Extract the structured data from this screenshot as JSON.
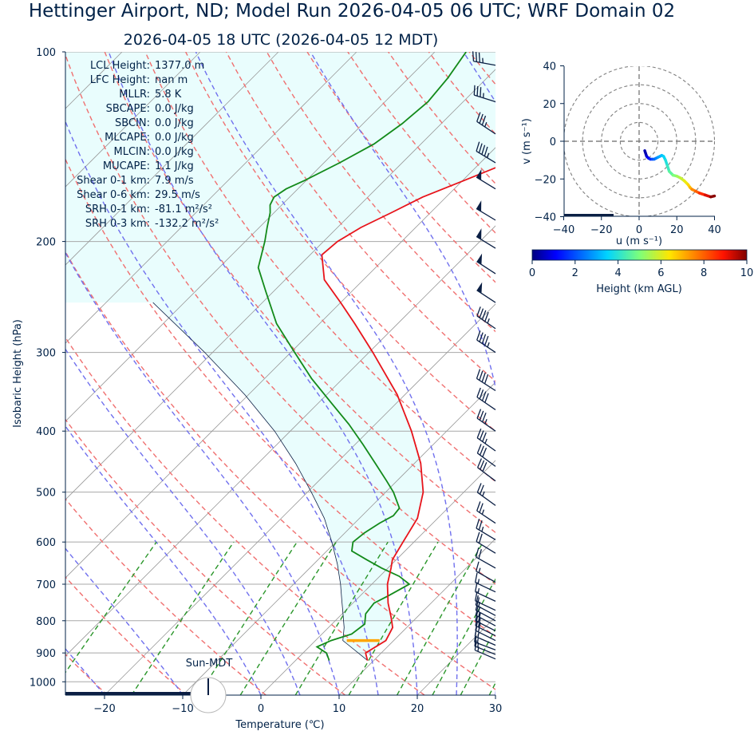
{
  "header": {
    "title": "Hettinger Airport, ND; Model Run 2026-04-05 06 UTC; WRF Domain 02",
    "subtitle": "2026-04-05 18 UTC  (2026-04-05 12 MDT)"
  },
  "skewt": {
    "xlabel": "Temperature (℃)",
    "ylabel": "Isobaric Height (hPa)",
    "sun_label": "Sun-MDT",
    "stats": [
      {
        "label": "LCL Height:",
        "value": "1377.0 m"
      },
      {
        "label": "LFC Height:",
        "value": "nan m"
      },
      {
        "label": "MLLR:",
        "value": "5.8 K"
      },
      {
        "label": "SBCAPE:",
        "value": "0.0 J/kg"
      },
      {
        "label": "SBCIN:",
        "value": "0.0 J/kg"
      },
      {
        "label": "MLCAPE:",
        "value": "0.0 J/kg"
      },
      {
        "label": "MLCIN:",
        "value": "0.0 J/kg"
      },
      {
        "label": "MUCAPE:",
        "value": "1.1 J/kg"
      },
      {
        "label": "Shear 0-1 km:",
        "value": "7.9 m/s"
      },
      {
        "label": "Shear 0-6 km:",
        "value": "29.5 m/s"
      },
      {
        "label": "SRH 0-1 km:",
        "value": "-81.1 m²/s²"
      },
      {
        "label": "SRH 0-3 km:",
        "value": "-132.2 m²/s²"
      }
    ]
  },
  "hodograph": {
    "xlabel": "u (m s⁻¹)",
    "ylabel": "v (m s⁻¹)",
    "colorbar_label": "Height (km AGL)"
  },
  "colors": {
    "temperature": "#e8141b",
    "dewpoint": "#138a1a",
    "parcel": "#0b1f44",
    "cape_fill": "#e9fdfd",
    "dry_adiabat": "#f07070",
    "moist_adiabat": "#7070ee",
    "mixing_ratio": "#2a962a",
    "isotherm": "#9a9a9a",
    "lcl_marker": "#ffa500",
    "text": "#002147"
  },
  "chart_data": [
    {
      "type": "line",
      "name": "skew-t",
      "xlim": [
        -25,
        30
      ],
      "ylim": [
        1050,
        100
      ],
      "y_scale": "log",
      "x_ticks": [
        -20,
        -10,
        0,
        10,
        20,
        30
      ],
      "y_ticks": [
        100,
        200,
        300,
        400,
        500,
        600,
        700,
        800,
        900,
        1000
      ],
      "grid": true,
      "series": [
        {
          "key": "temperature",
          "p": [
            925,
            900,
            860,
            820,
            790,
            750,
            700,
            660,
            640,
            600,
            550,
            500,
            450,
            400,
            350,
            300,
            270,
            250,
            230,
            210,
            200,
            190,
            180,
            170,
            160,
            150,
            140,
            130,
            120,
            110,
            100
          ],
          "t": [
            9.2,
            8.0,
            9.0,
            8.2,
            6.7,
            4.5,
            2.0,
            0.4,
            -0.5,
            -1.4,
            -2.6,
            -5.2,
            -9.2,
            -14.5,
            -21.0,
            -29.5,
            -35.5,
            -40.0,
            -45.0,
            -48.5,
            -48.2,
            -47.0,
            -45.0,
            -43.0,
            -39.8,
            -36.5,
            -35.5,
            -36.5,
            -39.5,
            -44.0,
            -48.0
          ]
        },
        {
          "key": "dewpoint",
          "p": [
            925,
            900,
            880,
            860,
            840,
            810,
            780,
            750,
            730,
            700,
            680,
            660,
            640,
            620,
            600,
            580,
            560,
            545,
            530,
            500,
            480,
            450,
            420,
            390,
            360,
            330,
            300,
            270,
            240,
            220,
            200,
            190,
            180,
            175,
            170,
            165,
            160,
            150,
            140,
            130,
            120,
            110,
            100
          ],
          "t": [
            4.3,
            3.0,
            1.0,
            2.0,
            3.8,
            4.2,
            3.0,
            2.7,
            3.6,
            4.8,
            2.5,
            -0.8,
            -3.8,
            -6.8,
            -7.8,
            -7.5,
            -6.8,
            -6.0,
            -6.2,
            -9.0,
            -11.3,
            -15.0,
            -19.0,
            -23.4,
            -28.5,
            -34.0,
            -39.5,
            -45.5,
            -51.0,
            -55.0,
            -57.5,
            -59.0,
            -60.5,
            -61.5,
            -62.0,
            -61.5,
            -60.2,
            -58.0,
            -56.0,
            -55.0,
            -54.5,
            -55.0,
            -56.0
          ]
        },
        {
          "key": "parcel",
          "p": [
            925,
            870,
            860,
            820,
            780,
            740,
            700,
            650,
            600,
            550,
            500,
            450,
            400,
            350,
            300,
            250
          ],
          "t": [
            9.2,
            4.4,
            3.5,
            2.0,
            0.1,
            -1.9,
            -4.0,
            -7.0,
            -10.5,
            -14.5,
            -19.5,
            -25.2,
            -32.0,
            -40.5,
            -51.0,
            -64.0
          ]
        }
      ],
      "lcl": {
        "p": 860,
        "t_min": 4.0,
        "t_max": 8.2
      },
      "wind_barbs": [
        {
          "p": 920,
          "u": 14,
          "v": -6
        },
        {
          "p": 905,
          "u": 15,
          "v": -6
        },
        {
          "p": 890,
          "u": 16,
          "v": -6
        },
        {
          "p": 875,
          "u": 16,
          "v": -7
        },
        {
          "p": 860,
          "u": 16,
          "v": -8
        },
        {
          "p": 845,
          "u": 16,
          "v": -8
        },
        {
          "p": 830,
          "u": 16,
          "v": -8
        },
        {
          "p": 815,
          "u": 15,
          "v": -8
        },
        {
          "p": 800,
          "u": 15,
          "v": -8
        },
        {
          "p": 785,
          "u": 15,
          "v": -8
        },
        {
          "p": 770,
          "u": 15,
          "v": -7
        },
        {
          "p": 745,
          "u": 15,
          "v": -7
        },
        {
          "p": 720,
          "u": 15,
          "v": -7
        },
        {
          "p": 695,
          "u": 14,
          "v": -8
        },
        {
          "p": 660,
          "u": 16,
          "v": -9
        },
        {
          "p": 625,
          "u": 18,
          "v": -11
        },
        {
          "p": 595,
          "u": 20,
          "v": -12
        },
        {
          "p": 560,
          "u": 21,
          "v": -14
        },
        {
          "p": 525,
          "u": 22,
          "v": -16
        },
        {
          "p": 480,
          "u": 24,
          "v": -18
        },
        {
          "p": 455,
          "u": 26,
          "v": -19
        },
        {
          "p": 430,
          "u": 28,
          "v": -20
        },
        {
          "p": 400,
          "u": 30,
          "v": -21
        },
        {
          "p": 370,
          "u": 32,
          "v": -22
        },
        {
          "p": 345,
          "u": 34,
          "v": -22
        },
        {
          "p": 300,
          "u": 36,
          "v": -24
        },
        {
          "p": 275,
          "u": 38,
          "v": -26
        },
        {
          "p": 250,
          "u": 41,
          "v": -27
        },
        {
          "p": 225,
          "u": 43,
          "v": -28
        },
        {
          "p": 205,
          "u": 44,
          "v": -27
        },
        {
          "p": 185,
          "u": 43,
          "v": -26
        },
        {
          "p": 165,
          "u": 41,
          "v": -25
        },
        {
          "p": 150,
          "u": 38,
          "v": -23
        },
        {
          "p": 135,
          "u": 30,
          "v": -20
        },
        {
          "p": 120,
          "u": 32,
          "v": -10
        },
        {
          "p": 105,
          "u": 33,
          "v": -6
        }
      ]
    },
    {
      "type": "line",
      "name": "hodograph",
      "xlim": [
        -40,
        40
      ],
      "ylim": [
        -40,
        40
      ],
      "ticks": [
        -40,
        -20,
        0,
        20,
        40
      ],
      "rings": [
        10,
        20,
        30,
        40
      ],
      "colorbar": {
        "min": 0,
        "max": 10,
        "ticks": [
          0,
          2,
          4,
          6,
          8,
          10
        ]
      },
      "series": [
        {
          "key": "wind_profile",
          "u": [
            3,
            4,
            5,
            6,
            7,
            8,
            9,
            10,
            11,
            12,
            13,
            14,
            15,
            16,
            18,
            20,
            22,
            24,
            26,
            27,
            28,
            30,
            32,
            35,
            38,
            40
          ],
          "v": [
            -5,
            -8,
            -9,
            -9.5,
            -9.5,
            -9.5,
            -9,
            -8.5,
            -8,
            -7.5,
            -8,
            -10,
            -13,
            -16,
            -18,
            -18.5,
            -19.5,
            -21,
            -23,
            -24.5,
            -25.5,
            -26.5,
            -27.5,
            -28.5,
            -29.5,
            -29
          ],
          "h_km": [
            0.1,
            0.4,
            0.8,
            1.2,
            1.6,
            2.0,
            2.3,
            2.6,
            2.9,
            3.1,
            3.3,
            3.6,
            3.9,
            4.2,
            4.6,
            5.0,
            5.4,
            5.8,
            6.2,
            6.6,
            7.0,
            7.5,
            8.0,
            8.6,
            9.2,
            9.9
          ]
        }
      ]
    }
  ]
}
